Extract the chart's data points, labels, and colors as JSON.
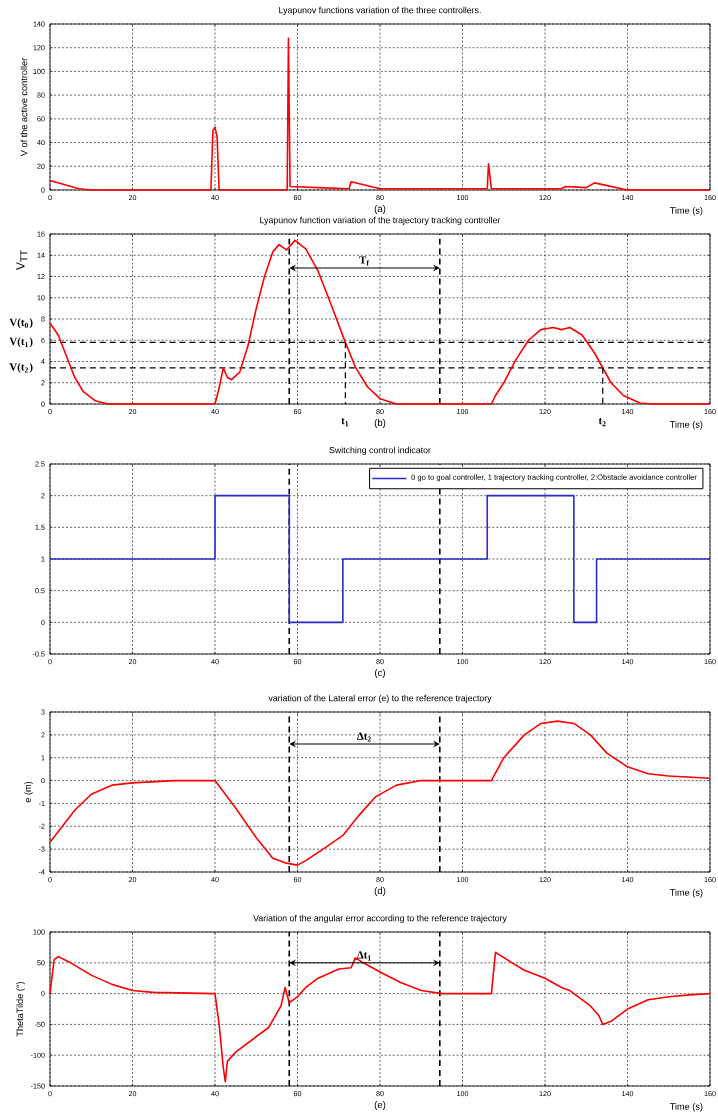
{
  "chart_data": [
    {
      "type": "line",
      "title": "Lyapunov functions  variation of the three controllers.",
      "xlabel": "Time (s)",
      "ylabel": "V of the active controller",
      "xlim": [
        0,
        160
      ],
      "ylim": [
        0,
        140
      ],
      "xticks": [
        0,
        20,
        40,
        60,
        80,
        100,
        120,
        140,
        160
      ],
      "yticks": [
        0,
        20,
        40,
        60,
        80,
        100,
        120,
        140
      ],
      "grid": true,
      "x": [
        0,
        3,
        7,
        10,
        39,
        39.5,
        40,
        40.5,
        41,
        57.5,
        57.8,
        58.2,
        65,
        72.5,
        73,
        80,
        106,
        106.3,
        107,
        124,
        125,
        130,
        132,
        140,
        160
      ],
      "series": [
        {
          "color": "#ff0000",
          "values": [
            8,
            5,
            1,
            0,
            0,
            50,
            53,
            45,
            0,
            0,
            128,
            3,
            2,
            1,
            7,
            1,
            1,
            22,
            1,
            1,
            3,
            2,
            6,
            0,
            0
          ]
        }
      ],
      "annotations": [
        "(a)"
      ]
    },
    {
      "type": "line",
      "title": "Lyapunov function  variation of the trajectory tracking controller",
      "xlabel": "Time (s)",
      "ylabel": "V$_{TT}$",
      "xlim": [
        0,
        160
      ],
      "ylim": [
        0,
        16
      ],
      "xticks": [
        0,
        20,
        40,
        60,
        80,
        100,
        120,
        140,
        160
      ],
      "yticks": [
        0,
        2,
        4,
        6,
        8,
        10,
        12,
        14,
        16
      ],
      "grid": true,
      "x": [
        0,
        2,
        4,
        6,
        8,
        11,
        14,
        40,
        41,
        42,
        43,
        44,
        46,
        48,
        50,
        52,
        54,
        55.5,
        57.3,
        59.4,
        62,
        65,
        68,
        71.6,
        74,
        77,
        80,
        84,
        107,
        108,
        110,
        113,
        116,
        119,
        122,
        124,
        126,
        129,
        132,
        134,
        136,
        139,
        143,
        146,
        160
      ],
      "series": [
        {
          "color": "#ff0000",
          "values": [
            7.6,
            6.5,
            4.5,
            2.5,
            1.2,
            0.3,
            0,
            0,
            1.5,
            3.4,
            2.5,
            2.3,
            3,
            5.5,
            9,
            12,
            14.3,
            15,
            14.5,
            15.4,
            14.6,
            12.5,
            9.5,
            5.8,
            3.5,
            1.6,
            0.5,
            0,
            0,
            0.8,
            2,
            4.2,
            6,
            7,
            7.2,
            7,
            7.2,
            6.5,
            4.8,
            3.4,
            2,
            0.8,
            0.1,
            0,
            0
          ]
        }
      ],
      "ref_lines": [
        {
          "axis": "x",
          "value": 58,
          "color": "#000000",
          "line_style": "dashed"
        },
        {
          "axis": "x",
          "value": 94.5,
          "color": "#000000",
          "line_style": "dashed"
        },
        {
          "axis": "y",
          "value": 5.8,
          "label": "V(t$_{1}$)",
          "color": "#000000",
          "line_style": "dashed"
        },
        {
          "axis": "y",
          "value": 3.4,
          "label": "V(t$_{2}$)",
          "color": "#000000",
          "line_style": "dashed"
        }
      ],
      "annotations": [
        "(b)",
        {
          "text": "V(t$_{0}$)",
          "x": 0,
          "y": 7.6
        },
        "T$_{f}$",
        {
          "text": "t$_{1}$",
          "x": 71.6,
          "y": 5.8
        },
        {
          "text": "t$_{2}$",
          "x": 134,
          "y": 3.4
        }
      ]
    },
    {
      "type": "step",
      "title": "Switching control indicator",
      "xlim": [
        0,
        160
      ],
      "ylim": [
        -0.5,
        2.5
      ],
      "xticks": [
        0,
        20,
        40,
        60,
        80,
        100,
        120,
        140,
        160
      ],
      "yticks": [
        -0.5,
        0,
        0.5,
        1,
        1.5,
        2,
        2.5
      ],
      "grid": true,
      "legend": "top right",
      "x": [
        0,
        40,
        58,
        71,
        106,
        127,
        132.5,
        160
      ],
      "series": [
        {
          "name": "0 go to goal controller, 1 trajectory tracking controller, 2:Obstacle avoidance controller",
          "color": "#2a2ad0",
          "values": [
            1,
            2,
            0,
            1,
            2,
            0,
            1,
            1
          ]
        }
      ],
      "ref_lines": [
        {
          "axis": "x",
          "value": 58,
          "color": "#000000",
          "line_style": "dashed"
        },
        {
          "axis": "x",
          "value": 94.5,
          "color": "#000000",
          "line_style": "dashed"
        }
      ],
      "annotations": [
        "(c)"
      ]
    },
    {
      "type": "line",
      "title": "variation of the Lateral error (e) to the reference trajectory",
      "xlabel": "Time (s)",
      "ylabel": "e (m)",
      "xlim": [
        0,
        160
      ],
      "ylim": [
        -4,
        3
      ],
      "xticks": [
        0,
        20,
        40,
        60,
        80,
        100,
        120,
        140,
        160
      ],
      "yticks": [
        -4,
        -3,
        -2,
        -1,
        0,
        1,
        2,
        3
      ],
      "grid": true,
      "x": [
        0,
        3,
        6,
        10,
        15,
        20,
        30,
        40,
        45,
        50,
        54,
        57,
        60,
        62,
        67,
        71,
        75,
        79,
        84,
        90,
        95,
        107,
        110,
        115,
        119,
        123,
        127,
        131,
        135,
        140,
        145,
        150,
        160
      ],
      "series": [
        {
          "color": "#ff0000",
          "values": [
            -2.7,
            -2,
            -1.3,
            -0.6,
            -0.2,
            -0.1,
            0,
            0,
            -1.2,
            -2.5,
            -3.4,
            -3.6,
            -3.7,
            -3.5,
            -2.9,
            -2.4,
            -1.5,
            -0.7,
            -0.2,
            0,
            0,
            0,
            1,
            2,
            2.5,
            2.6,
            2.5,
            2,
            1.2,
            0.6,
            0.3,
            0.2,
            0.1
          ]
        }
      ],
      "ref_lines": [
        {
          "axis": "x",
          "value": 58,
          "color": "#000000",
          "line_style": "dashed"
        },
        {
          "axis": "x",
          "value": 94.5,
          "color": "#000000",
          "line_style": "dashed"
        }
      ],
      "annotations": [
        "(d)",
        "Δt$_{2}$"
      ]
    },
    {
      "type": "line",
      "title": "Variation of the angular error according to the reference trajectory",
      "xlabel": "Time (s)",
      "ylabel": "ThetaTilde (°)",
      "xlim": [
        0,
        160
      ],
      "ylim": [
        -150,
        100
      ],
      "xticks": [
        0,
        20,
        40,
        60,
        80,
        100,
        120,
        140,
        160
      ],
      "yticks": [
        -150,
        -100,
        -50,
        0,
        50,
        100
      ],
      "grid": true,
      "x": [
        0,
        1,
        2,
        5,
        10,
        15,
        20,
        25,
        40,
        41,
        42,
        42.5,
        43,
        45,
        50,
        53,
        56,
        57,
        58,
        60,
        62,
        65,
        70,
        73,
        74,
        76,
        80,
        85,
        90,
        95,
        107,
        108,
        112,
        115,
        120,
        124,
        126,
        128,
        131,
        133,
        134,
        136,
        140,
        145,
        150,
        155,
        160
      ],
      "series": [
        {
          "color": "#ff0000",
          "values": [
            0,
            55,
            60,
            50,
            30,
            15,
            5,
            2,
            0,
            -50,
            -120,
            -143,
            -110,
            -95,
            -70,
            -55,
            -20,
            10,
            -15,
            -5,
            10,
            25,
            40,
            42,
            58,
            50,
            35,
            18,
            5,
            0,
            0,
            67,
            50,
            38,
            25,
            10,
            5,
            -5,
            -20,
            -35,
            -50,
            -45,
            -25,
            -10,
            -5,
            -2,
            0
          ]
        }
      ],
      "ref_lines": [
        {
          "axis": "x",
          "value": 58,
          "color": "#000000",
          "line_style": "dashed"
        },
        {
          "axis": "x",
          "value": 94.5,
          "color": "#000000",
          "line_style": "dashed"
        }
      ],
      "annotations": [
        "(e)",
        "Δt$_{1}$"
      ]
    }
  ]
}
